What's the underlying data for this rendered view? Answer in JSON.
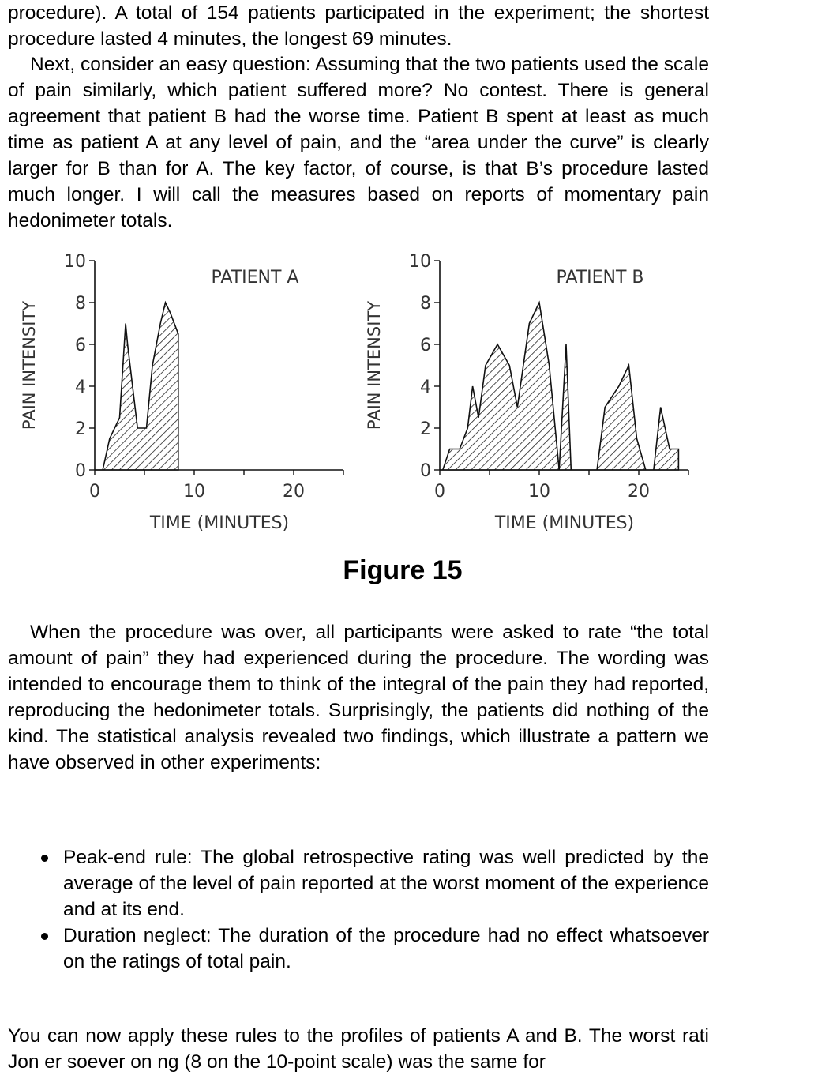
{
  "paragraphs": {
    "p1": "procedure). A total of 154 patients participated in the experiment; the shortest procedure lasted 4 minutes, the longest 69 minutes.",
    "p2": "Next, consider an easy question: Assuming that the two patients used the scale of pain similarly, which patient suffered more? No contest. There is general agreement that patient B had the worse time. Patient B spent at least as much time as patient A at any level of pain, and the “area under the curve” is clearly larger for B than for A. The key factor, of course, is that B’s procedure lasted much longer. I will call the measures based on reports of momentary pain hedonimeter totals.",
    "p3": "When the procedure was over, all participants were asked to rate “the total amount of pain” they had experienced during the procedure. The wording was intended to encourage them to think of the integral of the pain they had reported, reproducing the hedonimeter totals. Surprisingly, the patients did nothing of the kind. The statistical analysis revealed two findings, which illustrate a pattern we have observed in other experiments:",
    "p4": "You can now apply these rules to the profiles of patients A and B. The worst rati Jon er soever on ng (8 on the 10-point scale) was the same for"
  },
  "bullets": [
    "Peak-end rule: The global retrospective rating was well predicted by the average of the level of pain reported at the worst moment of the experience and at its end.",
    "Duration neglect: The duration of the procedure had no effect whatsoever on the ratings of total pain."
  ],
  "figure_caption": "Figure 15",
  "chart_data": [
    {
      "type": "area",
      "title": "PATIENT A",
      "xlabel": "TIME (MINUTES)",
      "ylabel": "PAIN INTENSITY",
      "xlim": [
        0,
        25
      ],
      "ylim": [
        0,
        10
      ],
      "x_ticks": [
        "0",
        "10",
        "20"
      ],
      "y_ticks": [
        "0",
        "2",
        "4",
        "6",
        "8",
        "10"
      ],
      "series": [
        {
          "x": [
            0,
            0.8,
            1.5,
            2.5,
            3.1,
            3.3,
            4.3,
            5.2,
            5.8,
            6.6,
            7.1,
            7.6,
            8.4,
            8.4
          ],
          "values": [
            0,
            0,
            1.5,
            2.5,
            7,
            6,
            2,
            2,
            5,
            7,
            8,
            7.5,
            6.5,
            0
          ]
        }
      ]
    },
    {
      "type": "area",
      "title": "PATIENT B",
      "xlabel": "TIME (MINUTES)",
      "ylabel": "PAIN INTENSITY",
      "xlim": [
        0,
        25
      ],
      "ylim": [
        0,
        10
      ],
      "x_ticks": [
        "0",
        "10",
        "20"
      ],
      "y_ticks": [
        "0",
        "2",
        "4",
        "6",
        "8",
        "10"
      ],
      "series": [
        {
          "x": [
            0,
            0.3,
            1.0,
            2.0,
            2.8,
            3.3,
            3.9,
            4.6,
            5.8,
            7.0,
            7.8,
            9.0,
            10.0,
            11.0,
            12.0,
            12.7,
            13.2,
            14.0,
            15.0,
            15.8,
            16.6,
            18.0,
            19.0,
            19.8,
            20.7,
            21.5,
            22.2,
            23.1,
            24.0,
            24.0
          ],
          "values": [
            0,
            0,
            1,
            1,
            2,
            4,
            2.5,
            5,
            6,
            5,
            3,
            7,
            8,
            5,
            0,
            6,
            0,
            0,
            0,
            0,
            3,
            4,
            5,
            1.5,
            0,
            0,
            3,
            1,
            1,
            0
          ]
        }
      ]
    }
  ]
}
